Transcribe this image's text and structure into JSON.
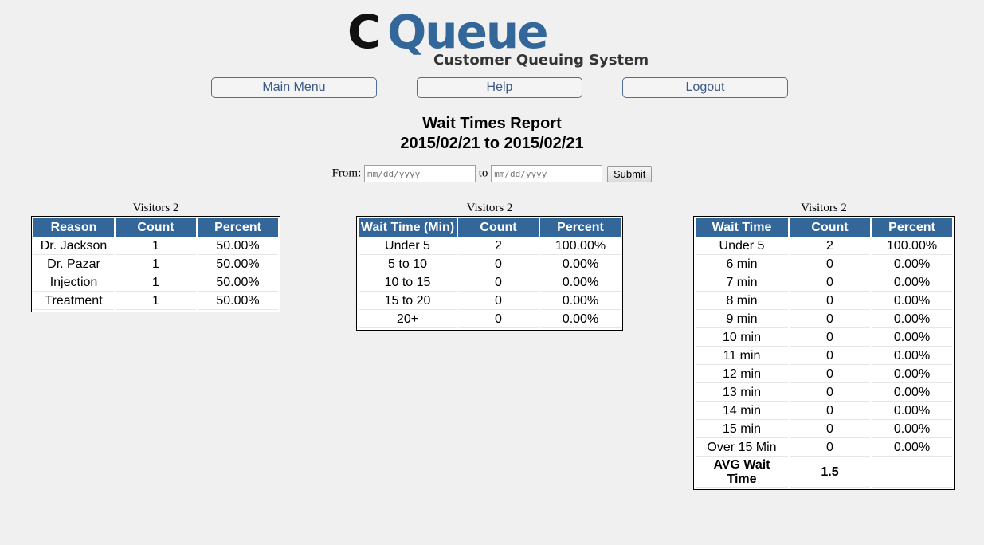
{
  "logo": {
    "main": "CQueue",
    "tagline": "Customer Queuing System"
  },
  "nav": {
    "main_menu": "Main Menu",
    "help": "Help",
    "logout": "Logout"
  },
  "report": {
    "title": "Wait Times Report",
    "range": "2015/02/21 to 2015/02/21"
  },
  "form": {
    "from_label": "From:",
    "from_placeholder": "mm/dd/yyyy",
    "to_label": "to",
    "to_placeholder": "mm/dd/yyyy",
    "submit": "Submit"
  },
  "colors": {
    "header": "#336699",
    "nav_text": "#3b5a88"
  },
  "tables": {
    "reason": {
      "caption": "Visitors 2",
      "headers": [
        "Reason",
        "Count",
        "Percent"
      ],
      "rows": [
        [
          "Dr. Jackson",
          "1",
          "50.00%"
        ],
        [
          "Dr. Pazar",
          "1",
          "50.00%"
        ],
        [
          "Injection",
          "1",
          "50.00%"
        ],
        [
          "Treatment",
          "1",
          "50.00%"
        ]
      ]
    },
    "wait_range": {
      "caption": "Visitors 2",
      "headers": [
        "Wait Time (Min)",
        "Count",
        "Percent"
      ],
      "rows": [
        [
          "Under 5",
          "2",
          "100.00%"
        ],
        [
          "5 to 10",
          "0",
          "0.00%"
        ],
        [
          "10 to 15",
          "0",
          "0.00%"
        ],
        [
          "15 to 20",
          "0",
          "0.00%"
        ],
        [
          "20+",
          "0",
          "0.00%"
        ]
      ]
    },
    "wait_minute": {
      "caption": "Visitors 2",
      "headers": [
        "Wait Time",
        "Count",
        "Percent"
      ],
      "rows": [
        [
          "Under 5",
          "2",
          "100.00%"
        ],
        [
          "6 min",
          "0",
          "0.00%"
        ],
        [
          "7 min",
          "0",
          "0.00%"
        ],
        [
          "8 min",
          "0",
          "0.00%"
        ],
        [
          "9 min",
          "0",
          "0.00%"
        ],
        [
          "10 min",
          "0",
          "0.00%"
        ],
        [
          "11 min",
          "0",
          "0.00%"
        ],
        [
          "12 min",
          "0",
          "0.00%"
        ],
        [
          "13 min",
          "0",
          "0.00%"
        ],
        [
          "14 min",
          "0",
          "0.00%"
        ],
        [
          "15 min",
          "0",
          "0.00%"
        ],
        [
          "Over 15 Min",
          "0",
          "0.00%"
        ]
      ],
      "avg_label": "AVG Wait Time",
      "avg_value": "1.5"
    }
  }
}
